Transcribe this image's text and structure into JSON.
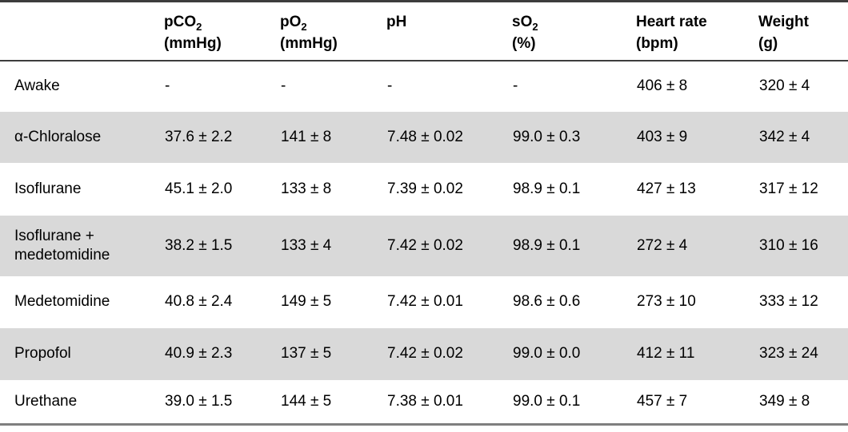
{
  "colors": {
    "row_shade": "#d9d9d9",
    "border_top": "#3d3d3d",
    "header_rule": "#3d3d3d",
    "border_bottom": "#7f7f7f",
    "text": "#000000",
    "background": "#ffffff"
  },
  "table": {
    "columns": [
      {
        "label": "",
        "sub": "",
        "unit": ""
      },
      {
        "label": "pCO",
        "sub": "2",
        "unit": "(mmHg)"
      },
      {
        "label": "pO",
        "sub": "2",
        "unit": "(mmHg)"
      },
      {
        "label": "pH",
        "sub": "",
        "unit": ""
      },
      {
        "label": "sO",
        "sub": "2",
        "unit": "(%)"
      },
      {
        "label": "Heart rate",
        "sub": "",
        "unit": "(bpm)"
      },
      {
        "label": "Weight",
        "sub": "",
        "unit": "(g)"
      }
    ],
    "rows": [
      {
        "label": "Awake",
        "shaded": false,
        "values": [
          "-",
          "-",
          "-",
          "-",
          "406 ± 8",
          "320 ± 4"
        ]
      },
      {
        "label": "α-Chloralose",
        "shaded": true,
        "values": [
          "37.6 ± 2.2",
          "141 ± 8",
          "7.48 ± 0.02",
          "99.0 ± 0.3",
          "403 ± 9",
          "342 ± 4"
        ]
      },
      {
        "label": "Isoflurane",
        "shaded": false,
        "values": [
          "45.1 ± 2.0",
          "133 ± 8",
          "7.39 ± 0.02",
          "98.9 ± 0.1",
          "427 ± 13",
          "317 ± 12"
        ]
      },
      {
        "label": "Isoflurane + medetomidine",
        "shaded": true,
        "values": [
          "38.2 ± 1.5",
          "133 ± 4",
          "7.42 ± 0.02",
          "98.9 ± 0.1",
          "272 ± 4",
          "310 ± 16"
        ]
      },
      {
        "label": "Medetomidine",
        "shaded": false,
        "values": [
          "40.8 ± 2.4",
          "149 ± 5",
          "7.42 ± 0.01",
          "98.6 ± 0.6",
          "273 ± 10",
          "333 ± 12"
        ]
      },
      {
        "label": "Propofol",
        "shaded": true,
        "values": [
          "40.9 ± 2.3",
          "137 ± 5",
          "7.42 ± 0.02",
          "99.0 ± 0.0",
          "412 ± 11",
          "323 ± 24"
        ]
      },
      {
        "label": "Urethane",
        "shaded": false,
        "values": [
          "39.0 ± 1.5",
          "144 ± 5",
          "7.38 ± 0.01",
          "99.0 ± 0.1",
          "457 ± 7",
          "349 ± 8"
        ]
      }
    ]
  }
}
